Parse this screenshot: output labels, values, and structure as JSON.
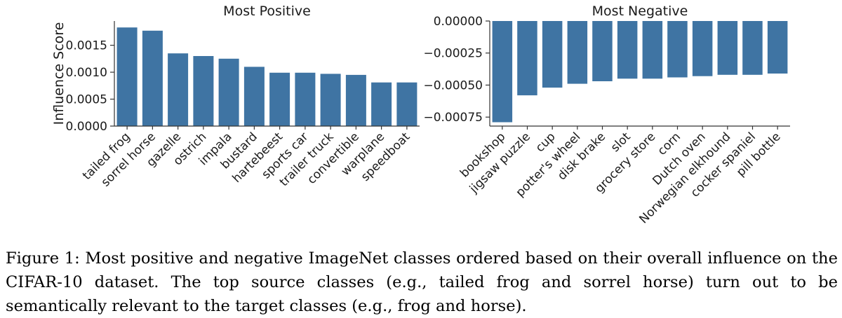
{
  "chart_data": [
    {
      "type": "bar",
      "title": "Most Positive",
      "ylabel": "Influence Score",
      "xlabel": "",
      "ylim": [
        0,
        0.00195
      ],
      "yticks": [
        0.0,
        0.0005,
        0.001,
        0.0015
      ],
      "ytick_labels": [
        "0.0000",
        "0.0005",
        "0.0010",
        "0.0015"
      ],
      "grid": false,
      "color": "#3f74a3",
      "categories": [
        "tailed frog",
        "sorrel horse",
        "gazelle",
        "ostrich",
        "impala",
        "bustard",
        "hartebeest",
        "sports car",
        "trailer truck",
        "convertible",
        "warplane",
        "speedboat"
      ],
      "values": [
        0.00183,
        0.00177,
        0.00135,
        0.0013,
        0.00125,
        0.0011,
        0.00099,
        0.00099,
        0.00097,
        0.00095,
        0.00081,
        0.00081
      ]
    },
    {
      "type": "bar",
      "title": "Most Negative",
      "ylabel": "",
      "xlabel": "",
      "ylim": [
        -0.00082,
        0.0
      ],
      "yticks": [
        0.0,
        -0.00025,
        -0.0005,
        -0.00075
      ],
      "ytick_labels": [
        "0.00000",
        "−0.00025",
        "−0.00050",
        "−0.00075"
      ],
      "grid": false,
      "color": "#3f74a3",
      "categories": [
        "bookshop",
        "jigsaw puzzle",
        "cup",
        "potter's wheel",
        "disk brake",
        "slot",
        "grocery store",
        "corn",
        "Dutch oven",
        "Norwegian elkhound",
        "cocker spaniel",
        "pill bottle"
      ],
      "values": [
        -0.00079,
        -0.00058,
        -0.00052,
        -0.00049,
        -0.00047,
        -0.00045,
        -0.00045,
        -0.00044,
        -0.00043,
        -0.00042,
        -0.00042,
        -0.00041
      ]
    }
  ],
  "caption": {
    "text": "Figure 1: Most positive and negative ImageNet classes ordered based on their overall influence on the CIFAR-10 dataset. The top source classes (e.g., tailed frog and sorrel horse) turn out to be semantically relevant to the target classes (e.g., frog and horse)."
  }
}
